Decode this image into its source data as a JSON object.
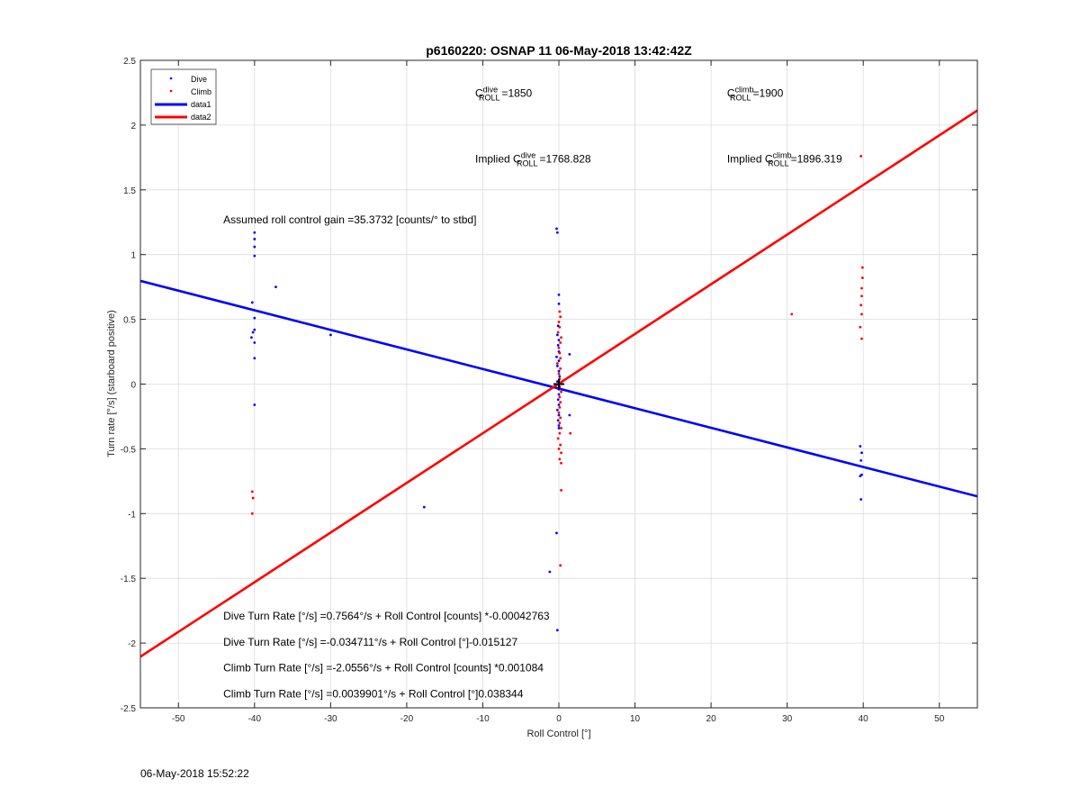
{
  "chart_data": {
    "type": "scatter",
    "title": "p6160220: OSNAP 11 06-May-2018 13:42:42Z",
    "xlabel": "Roll Control [°]",
    "ylabel": "Turn rate [°/s] (starboard positive)",
    "xlim": [
      -55,
      55
    ],
    "ylim": [
      -2.5,
      2.5
    ],
    "xticks": [
      -50,
      -40,
      -30,
      -20,
      -10,
      0,
      10,
      20,
      30,
      40,
      50
    ],
    "yticks": [
      -2.5,
      -2,
      -1.5,
      -1,
      -0.5,
      0,
      0.5,
      1,
      1.5,
      2,
      2.5
    ],
    "grid": true,
    "legend_position": "top-left",
    "legend": [
      {
        "label": "Dive",
        "kind": "point",
        "color": "#0000ff"
      },
      {
        "label": "Climb",
        "kind": "point",
        "color": "#ff0000"
      },
      {
        "label": "data1",
        "kind": "line",
        "color": "#0000ff"
      },
      {
        "label": "data2",
        "kind": "line",
        "color": "#ff0000"
      }
    ],
    "series": [
      {
        "name": "Dive",
        "kind": "scatter",
        "color": "#0000ff",
        "points": [
          [
            -40,
            1.17
          ],
          [
            -40,
            1.12
          ],
          [
            -40,
            1.06
          ],
          [
            -40,
            0.99
          ],
          [
            -40.3,
            0.63
          ],
          [
            -40,
            0.51
          ],
          [
            -40,
            0.42
          ],
          [
            -40.2,
            0.4
          ],
          [
            -40.4,
            0.36
          ],
          [
            -40,
            0.32
          ],
          [
            -40,
            0.2
          ],
          [
            -40,
            -0.16
          ],
          [
            -37.2,
            0.75
          ],
          [
            -30,
            0.38
          ],
          [
            -17.7,
            -0.95
          ],
          [
            -1.2,
            -1.45
          ],
          [
            -0.3,
            -1.15
          ],
          [
            -0.2,
            -1.9
          ],
          [
            -0.3,
            1.2
          ],
          [
            -0.2,
            1.17
          ],
          [
            0,
            0.69
          ],
          [
            0,
            0.62
          ],
          [
            -0.1,
            0.45
          ],
          [
            -0.2,
            0.38
          ],
          [
            0,
            0.34
          ],
          [
            -0.1,
            0.3
          ],
          [
            0,
            0.25
          ],
          [
            -0.3,
            0.21
          ],
          [
            0,
            0.18
          ],
          [
            -0.2,
            0.14
          ],
          [
            0,
            0.1
          ],
          [
            0.1,
            0.06
          ],
          [
            -0.2,
            0.02
          ],
          [
            0,
            -0.04
          ],
          [
            0,
            -0.08
          ],
          [
            -0.1,
            -0.12
          ],
          [
            0,
            -0.16
          ],
          [
            -0.2,
            -0.2
          ],
          [
            0,
            -0.24
          ],
          [
            -0.1,
            -0.28
          ],
          [
            0,
            -0.32
          ],
          [
            0,
            -0.34
          ],
          [
            1.4,
            0.23
          ],
          [
            1.4,
            -0.24
          ],
          [
            39.6,
            -0.48
          ],
          [
            39.8,
            -0.53
          ],
          [
            39.7,
            -0.59
          ],
          [
            39.8,
            -0.7
          ],
          [
            39.6,
            -0.71
          ],
          [
            39.7,
            -0.89
          ]
        ]
      },
      {
        "name": "Climb",
        "kind": "scatter",
        "color": "#ff0000",
        "points": [
          [
            -40.3,
            -0.83
          ],
          [
            -40.2,
            -0.88
          ],
          [
            -40.3,
            -1.0
          ],
          [
            0.1,
            0.56
          ],
          [
            0.2,
            0.52
          ],
          [
            0,
            0.48
          ],
          [
            0.1,
            0.44
          ],
          [
            -0.1,
            0.4
          ],
          [
            0.3,
            0.36
          ],
          [
            0.2,
            0.32
          ],
          [
            0,
            0.28
          ],
          [
            0.1,
            0.24
          ],
          [
            0.2,
            0.2
          ],
          [
            -0.2,
            0.16
          ],
          [
            0.2,
            0.12
          ],
          [
            0,
            0.08
          ],
          [
            0.1,
            0.04
          ],
          [
            0.1,
            -0.02
          ],
          [
            0.3,
            -0.06
          ],
          [
            0.1,
            -0.1
          ],
          [
            0.2,
            -0.14
          ],
          [
            0.1,
            -0.18
          ],
          [
            0,
            -0.22
          ],
          [
            0.2,
            -0.26
          ],
          [
            0.1,
            -0.3
          ],
          [
            0.3,
            -0.34
          ],
          [
            0.1,
            -0.38
          ],
          [
            -0.1,
            -0.42
          ],
          [
            0.2,
            -0.47
          ],
          [
            0,
            -0.5
          ],
          [
            0.3,
            -0.53
          ],
          [
            0.1,
            -0.58
          ],
          [
            0.3,
            -0.61
          ],
          [
            0.3,
            -0.82
          ],
          [
            0.2,
            -1.4
          ],
          [
            1.5,
            -0.38
          ],
          [
            30.6,
            0.54
          ],
          [
            39.9,
            0.9
          ],
          [
            39.9,
            0.82
          ],
          [
            39.8,
            0.74
          ],
          [
            39.8,
            0.68
          ],
          [
            39.7,
            0.61
          ],
          [
            39.8,
            0.54
          ],
          [
            39.6,
            0.44
          ],
          [
            39.8,
            0.35
          ],
          [
            39.7,
            1.76
          ]
        ]
      },
      {
        "name": "data1",
        "kind": "line",
        "color": "#0000ff",
        "points": [
          [
            -55,
            0.797
          ],
          [
            55,
            -0.867
          ]
        ]
      },
      {
        "name": "data2",
        "kind": "line",
        "color": "#ff0000",
        "points": [
          [
            -55,
            -2.105
          ],
          [
            55,
            2.113
          ]
        ]
      }
    ],
    "marker": {
      "kind": "plus",
      "color": "#000000",
      "x": 0,
      "y": 0
    },
    "annotations": {
      "c_dive": {
        "base": "C",
        "sup": "dive",
        "sub": "ROLL",
        "value": "=1850",
        "x": -11,
        "y": 2.22
      },
      "c_climb": {
        "base": "C",
        "sup": "climb",
        "sub": "ROLL",
        "value": "=1900",
        "x": 22.1,
        "y": 2.22
      },
      "implied_dive": {
        "prefix": "Implied ",
        "base": "C",
        "sup": "dive",
        "sub": "ROLL",
        "value": "=1768.828",
        "x": -11,
        "y": 1.71
      },
      "implied_climb": {
        "prefix": "Implied ",
        "base": "C",
        "sup": "climb",
        "sub": "ROLL",
        "value": "=1896.319",
        "x": 22.1,
        "y": 1.71
      },
      "gain": {
        "text": "Assumed roll control gain =35.3732 [counts/° to stbd]",
        "x": -44.1,
        "y": 1.24
      },
      "eq1": {
        "text": "Dive Turn Rate [°/s] =0.7564°/s + Roll Control [counts] *-0.00042763",
        "x": -44.1,
        "y": -1.82
      },
      "eq2": {
        "text": "Dive Turn Rate [°/s] =-0.034711°/s + Roll Control [°]-0.015127",
        "x": -44.1,
        "y": -2.02
      },
      "eq3": {
        "text": "Climb Turn Rate [°/s] =-2.0556°/s + Roll Control [counts] *0.001084",
        "x": -44.1,
        "y": -2.22
      },
      "eq4": {
        "text": "Climb Turn Rate [°/s] =0.0039901°/s + Roll Control [°]0.038344",
        "x": -44.1,
        "y": -2.42
      }
    }
  },
  "footer": {
    "timestamp": "06-May-2018 15:52:22"
  }
}
